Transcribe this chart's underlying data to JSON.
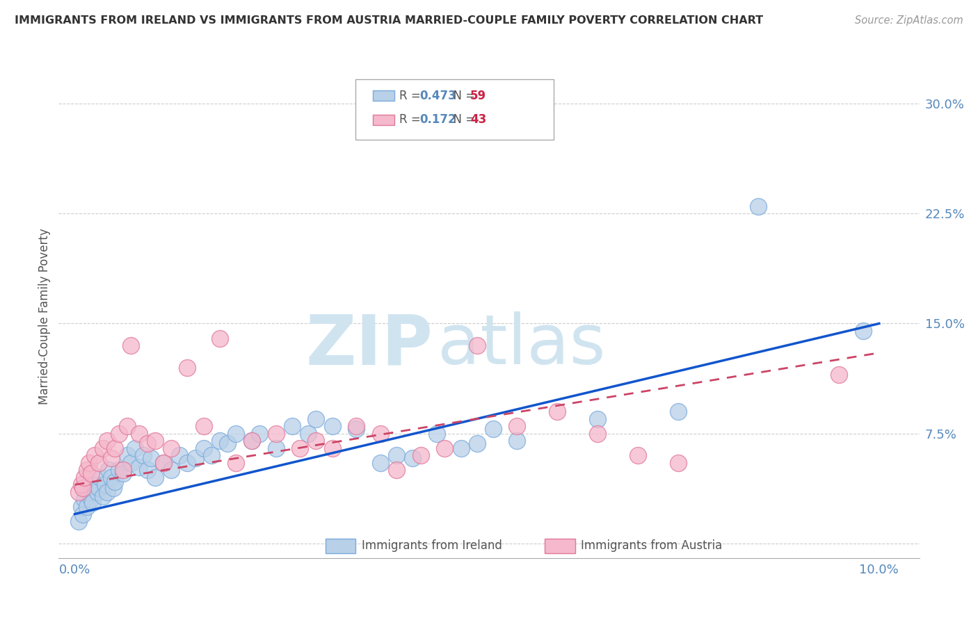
{
  "title": "IMMIGRANTS FROM IRELAND VS IMMIGRANTS FROM AUSTRIA MARRIED-COUPLE FAMILY POVERTY CORRELATION CHART",
  "source": "Source: ZipAtlas.com",
  "ylabel": "Married-Couple Family Poverty",
  "xlim": [
    -0.2,
    10.5
  ],
  "ylim": [
    -1.0,
    32.0
  ],
  "xticks": [
    0.0,
    10.0
  ],
  "xticklabels": [
    "0.0%",
    "10.0%"
  ],
  "yticks": [
    0.0,
    7.5,
    15.0,
    22.5,
    30.0
  ],
  "yticklabels": [
    "",
    "7.5%",
    "15.0%",
    "22.5%",
    "30.0%"
  ],
  "legend_r_ireland": "0.473",
  "legend_n_ireland": "59",
  "legend_r_austria": "0.172",
  "legend_n_austria": "43",
  "ireland_color": "#b8d0e8",
  "ireland_edge": "#7aaadd",
  "austria_color": "#f5b8cc",
  "austria_edge": "#e07898",
  "trendline_ireland_color": "#1155cc",
  "trendline_austria_color": "#cc4466",
  "watermark_zip": "ZIP",
  "watermark_atlas": "atlas",
  "watermark_color": "#d0e4f0",
  "tick_color": "#5588bb",
  "ireland_x": [
    0.05,
    0.08,
    0.1,
    0.12,
    0.15,
    0.18,
    0.2,
    0.22,
    0.25,
    0.28,
    0.3,
    0.32,
    0.35,
    0.38,
    0.4,
    0.42,
    0.45,
    0.48,
    0.5,
    0.55,
    0.6,
    0.65,
    0.7,
    0.75,
    0.8,
    0.85,
    0.9,
    0.95,
    1.0,
    1.1,
    1.2,
    1.3,
    1.4,
    1.5,
    1.6,
    1.7,
    1.8,
    1.9,
    2.0,
    2.2,
    2.3,
    2.5,
    2.7,
    2.9,
    3.0,
    3.2,
    3.5,
    3.8,
    4.0,
    4.2,
    4.5,
    4.8,
    5.0,
    5.2,
    5.5,
    6.5,
    7.5,
    8.5,
    9.8
  ],
  "ireland_y": [
    1.5,
    2.5,
    2.0,
    3.0,
    2.5,
    3.5,
    3.0,
    2.8,
    4.0,
    3.5,
    3.8,
    4.5,
    3.2,
    4.0,
    3.5,
    5.0,
    4.5,
    3.8,
    4.2,
    5.0,
    4.8,
    6.0,
    5.5,
    6.5,
    5.2,
    6.0,
    5.0,
    5.8,
    4.5,
    5.5,
    5.0,
    6.0,
    5.5,
    5.8,
    6.5,
    6.0,
    7.0,
    6.8,
    7.5,
    7.0,
    7.5,
    6.5,
    8.0,
    7.5,
    8.5,
    8.0,
    7.8,
    5.5,
    6.0,
    5.8,
    7.5,
    6.5,
    6.8,
    7.8,
    7.0,
    8.5,
    9.0,
    23.0,
    14.5
  ],
  "austria_x": [
    0.05,
    0.08,
    0.1,
    0.12,
    0.15,
    0.18,
    0.2,
    0.25,
    0.3,
    0.35,
    0.4,
    0.45,
    0.5,
    0.55,
    0.6,
    0.65,
    0.7,
    0.8,
    0.9,
    1.0,
    1.1,
    1.2,
    1.4,
    1.6,
    1.8,
    2.0,
    2.2,
    2.5,
    2.8,
    3.0,
    3.2,
    3.5,
    3.8,
    4.0,
    4.3,
    4.6,
    5.0,
    5.5,
    6.0,
    6.5,
    7.0,
    7.5,
    9.5
  ],
  "austria_y": [
    3.5,
    4.0,
    3.8,
    4.5,
    5.0,
    5.5,
    4.8,
    6.0,
    5.5,
    6.5,
    7.0,
    5.8,
    6.5,
    7.5,
    5.0,
    8.0,
    13.5,
    7.5,
    6.8,
    7.0,
    5.5,
    6.5,
    12.0,
    8.0,
    14.0,
    5.5,
    7.0,
    7.5,
    6.5,
    7.0,
    6.5,
    8.0,
    7.5,
    5.0,
    6.0,
    6.5,
    13.5,
    8.0,
    9.0,
    7.5,
    6.0,
    5.5,
    11.5
  ]
}
